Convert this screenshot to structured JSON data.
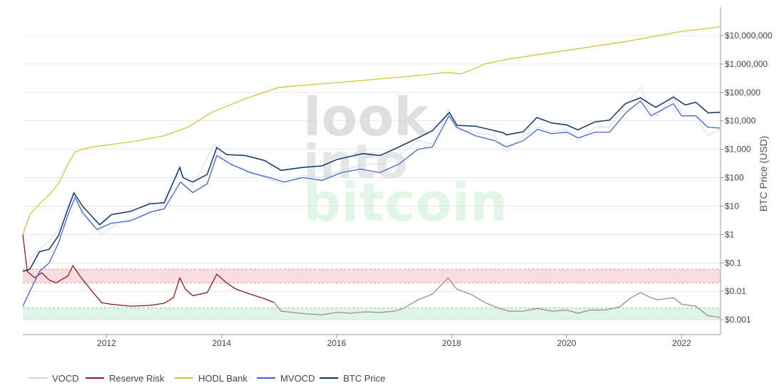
{
  "chart_data": {
    "type": "line",
    "yscale": "log",
    "ylabel": "BTC Price (USD)",
    "xlabel": "",
    "title": "",
    "x_range": [
      "2010-07-18",
      "2022-09-05"
    ],
    "ylim": [
      0.0003,
      100000000
    ],
    "grid": true,
    "legend_position": "bottom-left",
    "watermark": [
      "look",
      "into",
      "bitcoin"
    ],
    "x_ticks": [
      {
        "date": "2012-01-01",
        "label": "2012"
      },
      {
        "date": "2014-01-01",
        "label": "2014"
      },
      {
        "date": "2016-01-01",
        "label": "2016"
      },
      {
        "date": "2018-01-01",
        "label": "2018"
      },
      {
        "date": "2020-01-01",
        "label": "2020"
      },
      {
        "date": "2022-01-01",
        "label": "2022"
      }
    ],
    "y_ticks": [
      {
        "value": 0.001,
        "label": "$0.001"
      },
      {
        "value": 0.01,
        "label": "$0.01"
      },
      {
        "value": 0.1,
        "label": "$0.1"
      },
      {
        "value": 1,
        "label": "$1"
      },
      {
        "value": 10,
        "label": "$10"
      },
      {
        "value": 100,
        "label": "$100"
      },
      {
        "value": 1000,
        "label": "$1,000"
      },
      {
        "value": 10000,
        "label": "$10,000"
      },
      {
        "value": 100000,
        "label": "$100,000"
      },
      {
        "value": 1000000,
        "label": "$1,000,000"
      },
      {
        "value": 10000000,
        "label": "$10,000,000"
      }
    ],
    "bands": [
      {
        "name": "high risk zone",
        "from": 0.02,
        "to": 0.06,
        "color": "#f8d7da",
        "border": "#e08c94"
      },
      {
        "name": "low risk zone",
        "from": 0.001,
        "to": 0.0026,
        "color": "#d9f2e4",
        "border": "#8fc9a6"
      }
    ],
    "series": [
      {
        "name": "VOCD",
        "color": "#c9d2fa",
        "points": [
          [
            "2010-08-01",
            0.1
          ],
          [
            "2010-10-01",
            0.2
          ],
          [
            "2011-01-01",
            0.6
          ],
          [
            "2011-03-01",
            1.5
          ],
          [
            "2011-06-01",
            30
          ],
          [
            "2011-08-01",
            5
          ],
          [
            "2011-12-01",
            1
          ],
          [
            "2012-04-01",
            3
          ],
          [
            "2012-08-01",
            4
          ],
          [
            "2012-12-01",
            8
          ],
          [
            "2013-04-01",
            150
          ],
          [
            "2013-07-01",
            50
          ],
          [
            "2013-11-15",
            1500
          ],
          [
            "2014-02-01",
            300
          ],
          [
            "2014-06-01",
            200
          ],
          [
            "2014-10-01",
            100
          ],
          [
            "2015-01-15",
            60
          ],
          [
            "2015-06-01",
            120
          ],
          [
            "2015-10-01",
            100
          ],
          [
            "2016-03-01",
            200
          ],
          [
            "2016-07-01",
            300
          ],
          [
            "2016-11-01",
            300
          ],
          [
            "2017-03-01",
            800
          ],
          [
            "2017-06-01",
            2000
          ],
          [
            "2017-09-01",
            1500
          ],
          [
            "2017-12-15",
            25000
          ],
          [
            "2018-02-01",
            5000
          ],
          [
            "2018-06-01",
            4000
          ],
          [
            "2018-10-01",
            3000
          ],
          [
            "2018-12-15",
            800
          ],
          [
            "2019-04-01",
            3000
          ],
          [
            "2019-07-01",
            6000
          ],
          [
            "2019-10-01",
            4000
          ],
          [
            "2020-01-01",
            5000
          ],
          [
            "2020-03-15",
            2000
          ],
          [
            "2020-07-01",
            6000
          ],
          [
            "2020-10-01",
            6000
          ],
          [
            "2021-01-15",
            40000
          ],
          [
            "2021-04-15",
            150000
          ],
          [
            "2021-06-20",
            20000
          ],
          [
            "2021-08-01",
            15000
          ],
          [
            "2021-11-10",
            80000
          ],
          [
            "2022-01-01",
            20000
          ],
          [
            "2022-04-01",
            15000
          ],
          [
            "2022-06-15",
            3000
          ],
          [
            "2022-09-01",
            5000
          ]
        ]
      },
      {
        "name": "Reserve Risk",
        "color": "#8b1a1a",
        "color_late": "#a08a84",
        "points": [
          [
            "2010-07-18",
            1.0
          ],
          [
            "2010-08-15",
            0.05
          ],
          [
            "2010-10-01",
            0.03
          ],
          [
            "2010-11-15",
            0.045
          ],
          [
            "2011-01-01",
            0.025
          ],
          [
            "2011-02-15",
            0.02
          ],
          [
            "2011-04-01",
            0.028
          ],
          [
            "2011-05-01",
            0.035
          ],
          [
            "2011-06-01",
            0.08
          ],
          [
            "2011-07-15",
            0.035
          ],
          [
            "2011-10-01",
            0.01
          ],
          [
            "2011-12-01",
            0.004
          ],
          [
            "2012-02-01",
            0.0035
          ],
          [
            "2012-06-01",
            0.003
          ],
          [
            "2012-10-01",
            0.0032
          ],
          [
            "2013-01-01",
            0.0038
          ],
          [
            "2013-03-01",
            0.006
          ],
          [
            "2013-04-10",
            0.03
          ],
          [
            "2013-05-15",
            0.012
          ],
          [
            "2013-07-01",
            0.007
          ],
          [
            "2013-10-01",
            0.009
          ],
          [
            "2013-12-01",
            0.04
          ],
          [
            "2014-02-01",
            0.02
          ],
          [
            "2014-04-01",
            0.012
          ],
          [
            "2014-07-01",
            0.008
          ],
          [
            "2014-10-01",
            0.0055
          ],
          [
            "2014-12-01",
            0.004
          ],
          [
            "2015-01-15",
            0.002
          ],
          [
            "2015-04-01",
            0.0018
          ],
          [
            "2015-07-01",
            0.0016
          ],
          [
            "2015-10-01",
            0.0015
          ],
          [
            "2016-01-01",
            0.0018
          ],
          [
            "2016-04-01",
            0.0017
          ],
          [
            "2016-07-01",
            0.0019
          ],
          [
            "2016-10-01",
            0.0018
          ],
          [
            "2017-01-01",
            0.002
          ],
          [
            "2017-03-01",
            0.0025
          ],
          [
            "2017-06-01",
            0.005
          ],
          [
            "2017-09-01",
            0.008
          ],
          [
            "2017-12-10",
            0.03
          ],
          [
            "2018-02-01",
            0.012
          ],
          [
            "2018-05-01",
            0.008
          ],
          [
            "2018-08-01",
            0.004
          ],
          [
            "2018-11-01",
            0.0025
          ],
          [
            "2019-01-01",
            0.002
          ],
          [
            "2019-04-01",
            0.002
          ],
          [
            "2019-07-01",
            0.0025
          ],
          [
            "2019-10-01",
            0.002
          ],
          [
            "2020-01-01",
            0.0022
          ],
          [
            "2020-03-15",
            0.0017
          ],
          [
            "2020-06-01",
            0.0022
          ],
          [
            "2020-09-01",
            0.0022
          ],
          [
            "2020-12-01",
            0.0028
          ],
          [
            "2021-02-15",
            0.006
          ],
          [
            "2021-04-15",
            0.009
          ],
          [
            "2021-06-20",
            0.006
          ],
          [
            "2021-08-01",
            0.005
          ],
          [
            "2021-11-10",
            0.006
          ],
          [
            "2022-01-01",
            0.0035
          ],
          [
            "2022-04-01",
            0.003
          ],
          [
            "2022-06-15",
            0.0014
          ],
          [
            "2022-09-01",
            0.0012
          ]
        ]
      },
      {
        "name": "HODL Bank",
        "color": "#d3c43a",
        "points": [
          [
            "2010-07-18",
            1.0
          ],
          [
            "2010-09-01",
            5
          ],
          [
            "2010-11-01",
            12
          ],
          [
            "2011-01-01",
            25
          ],
          [
            "2011-03-01",
            60
          ],
          [
            "2011-05-01",
            300
          ],
          [
            "2011-06-15",
            800
          ],
          [
            "2011-08-01",
            1000
          ],
          [
            "2011-10-01",
            1200
          ],
          [
            "2012-06-01",
            1800
          ],
          [
            "2013-01-01",
            3000
          ],
          [
            "2013-06-01",
            6000
          ],
          [
            "2013-11-01",
            20000
          ],
          [
            "2014-06-01",
            60000
          ],
          [
            "2015-01-01",
            150000
          ],
          [
            "2016-01-01",
            220000
          ],
          [
            "2017-01-01",
            330000
          ],
          [
            "2017-12-01",
            500000
          ],
          [
            "2018-03-01",
            450000
          ],
          [
            "2018-05-01",
            600000
          ],
          [
            "2018-08-01",
            1000000
          ],
          [
            "2019-01-01",
            1500000
          ],
          [
            "2020-01-01",
            3000000
          ],
          [
            "2021-01-01",
            6000000
          ],
          [
            "2022-01-01",
            14000000
          ],
          [
            "2022-09-01",
            20000000
          ]
        ]
      },
      {
        "name": "MVOCD",
        "color": "#3d63d9",
        "points": [
          [
            "2010-07-18",
            0.003
          ],
          [
            "2010-09-01",
            0.01
          ],
          [
            "2010-11-01",
            0.05
          ],
          [
            "2011-01-01",
            0.1
          ],
          [
            "2011-03-01",
            0.5
          ],
          [
            "2011-05-01",
            5
          ],
          [
            "2011-06-15",
            20
          ],
          [
            "2011-08-01",
            6
          ],
          [
            "2011-11-01",
            1.5
          ],
          [
            "2012-02-01",
            2.5
          ],
          [
            "2012-06-01",
            3
          ],
          [
            "2012-10-01",
            6
          ],
          [
            "2013-01-01",
            8
          ],
          [
            "2013-04-15",
            70
          ],
          [
            "2013-07-01",
            30
          ],
          [
            "2013-10-01",
            60
          ],
          [
            "2013-12-01",
            600
          ],
          [
            "2014-03-01",
            300
          ],
          [
            "2014-07-01",
            150
          ],
          [
            "2014-11-01",
            100
          ],
          [
            "2015-02-01",
            70
          ],
          [
            "2015-06-01",
            100
          ],
          [
            "2015-10-01",
            80
          ],
          [
            "2016-02-01",
            150
          ],
          [
            "2016-06-01",
            200
          ],
          [
            "2016-10-01",
            150
          ],
          [
            "2017-02-01",
            300
          ],
          [
            "2017-06-01",
            1000
          ],
          [
            "2017-09-01",
            1200
          ],
          [
            "2017-12-15",
            15000
          ],
          [
            "2018-02-01",
            6000
          ],
          [
            "2018-06-01",
            3000
          ],
          [
            "2018-10-01",
            2000
          ],
          [
            "2018-12-15",
            1200
          ],
          [
            "2019-04-01",
            2000
          ],
          [
            "2019-07-01",
            5000
          ],
          [
            "2019-10-01",
            3500
          ],
          [
            "2020-01-01",
            4000
          ],
          [
            "2020-03-15",
            2500
          ],
          [
            "2020-07-01",
            4000
          ],
          [
            "2020-10-01",
            4000
          ],
          [
            "2021-01-15",
            20000
          ],
          [
            "2021-04-15",
            50000
          ],
          [
            "2021-06-20",
            15000
          ],
          [
            "2021-08-01",
            20000
          ],
          [
            "2021-11-10",
            40000
          ],
          [
            "2022-01-01",
            15000
          ],
          [
            "2022-04-01",
            15000
          ],
          [
            "2022-06-15",
            6000
          ],
          [
            "2022-09-01",
            5500
          ]
        ]
      },
      {
        "name": "BTC Price",
        "color": "#0d3566",
        "points": [
          [
            "2010-07-18",
            0.05
          ],
          [
            "2010-09-01",
            0.06
          ],
          [
            "2010-11-01",
            0.25
          ],
          [
            "2011-01-01",
            0.3
          ],
          [
            "2011-03-01",
            0.9
          ],
          [
            "2011-05-01",
            8
          ],
          [
            "2011-06-08",
            29
          ],
          [
            "2011-08-01",
            10
          ],
          [
            "2011-11-18",
            2.2
          ],
          [
            "2012-02-01",
            5
          ],
          [
            "2012-06-01",
            6.5
          ],
          [
            "2012-10-01",
            12
          ],
          [
            "2013-01-01",
            13
          ],
          [
            "2013-04-10",
            230
          ],
          [
            "2013-05-01",
            100
          ],
          [
            "2013-07-01",
            70
          ],
          [
            "2013-10-01",
            130
          ],
          [
            "2013-12-01",
            1150
          ],
          [
            "2014-02-01",
            650
          ],
          [
            "2014-06-01",
            600
          ],
          [
            "2014-10-01",
            400
          ],
          [
            "2015-01-14",
            180
          ],
          [
            "2015-06-01",
            230
          ],
          [
            "2015-10-01",
            260
          ],
          [
            "2016-01-01",
            430
          ],
          [
            "2016-06-15",
            700
          ],
          [
            "2016-10-01",
            600
          ],
          [
            "2017-01-01",
            1000
          ],
          [
            "2017-06-01",
            2500
          ],
          [
            "2017-09-01",
            4500
          ],
          [
            "2017-12-17",
            19500
          ],
          [
            "2018-02-05",
            6900
          ],
          [
            "2018-06-01",
            6500
          ],
          [
            "2018-11-25",
            3800
          ],
          [
            "2018-12-15",
            3200
          ],
          [
            "2019-04-01",
            4100
          ],
          [
            "2019-06-26",
            13000
          ],
          [
            "2019-10-01",
            8300
          ],
          [
            "2020-01-01",
            7200
          ],
          [
            "2020-03-12",
            4800
          ],
          [
            "2020-07-01",
            9200
          ],
          [
            "2020-10-01",
            10600
          ],
          [
            "2021-01-08",
            40000
          ],
          [
            "2021-04-14",
            64000
          ],
          [
            "2021-07-20",
            29800
          ],
          [
            "2021-11-10",
            68000
          ],
          [
            "2022-01-24",
            36000
          ],
          [
            "2022-04-01",
            45000
          ],
          [
            "2022-06-18",
            19000
          ],
          [
            "2022-09-01",
            20000
          ]
        ]
      }
    ],
    "legend": [
      "VOCD",
      "Reserve Risk",
      "HODL Bank",
      "MVOCD",
      "BTC Price"
    ]
  }
}
